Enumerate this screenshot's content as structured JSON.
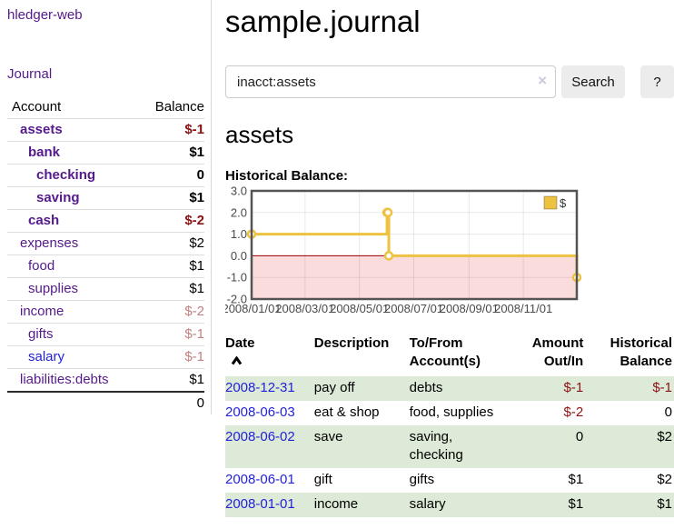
{
  "colors": {
    "link_purple": "#551A8B",
    "link_blue": "#2323D8",
    "negative_strong": "#8B1212",
    "negative_muted": "#C28181",
    "row_stripe_green": "#DCEAD7",
    "chart_series_yellow": "#EDC240",
    "chart_negative_fill": "#FBDCDC",
    "chart_zero_line": "#990000",
    "button_bg": "#ECECEC"
  },
  "sidebar": {
    "brand": "hledger-web",
    "journal_link": "Journal",
    "accounts": {
      "col_account": "Account",
      "col_balance": "Balance",
      "rows": [
        {
          "name": "assets",
          "balance": "$-1"
        },
        {
          "name": "bank",
          "balance": "$1"
        },
        {
          "name": "checking",
          "balance": "0"
        },
        {
          "name": "saving",
          "balance": "$1"
        },
        {
          "name": "cash",
          "balance": "$-2"
        },
        {
          "name": "expenses",
          "balance": "$2"
        },
        {
          "name": "food",
          "balance": "$1"
        },
        {
          "name": "supplies",
          "balance": "$1"
        },
        {
          "name": "income",
          "balance": "$-2"
        },
        {
          "name": "gifts",
          "balance": "$-1"
        },
        {
          "name": "salary",
          "balance": "$-1"
        },
        {
          "name": "liabilities:debts",
          "balance": "$1"
        }
      ],
      "total": "0"
    }
  },
  "main": {
    "title": "sample.journal",
    "search": {
      "value": "inacct:assets",
      "clear": "×",
      "search_button": "Search",
      "help_button": "?"
    },
    "account_title": "assets",
    "chart_heading": "Historical Balance:"
  },
  "chart_data": {
    "type": "line",
    "step": true,
    "title": "Historical Balance",
    "x_range": [
      "2008-01-01",
      "2008-12-31"
    ],
    "ylim": [
      -2,
      3
    ],
    "series": [
      {
        "name": "$",
        "points": [
          [
            "2008-01-01",
            1
          ],
          [
            "2008-06-01",
            2
          ],
          [
            "2008-06-02",
            2
          ],
          [
            "2008-06-03",
            0
          ],
          [
            "2008-12-31",
            -1
          ]
        ]
      }
    ],
    "x_ticks": [
      "2008/01/01",
      "2008/03/01",
      "2008/05/01",
      "2008/07/01",
      "2008/09/01",
      "2008/11/01"
    ],
    "y_ticks": [
      "3.0",
      "2.0",
      "1.0",
      "0.0",
      "-1.0",
      "-2.0"
    ],
    "grid": true,
    "legend": "$",
    "legend_position": "top-right"
  },
  "register": {
    "headers": {
      "date": "Date",
      "description": "Description",
      "tofrom1": "To/From",
      "tofrom2": "Account(s)",
      "amount1": "Amount",
      "amount2": "Out/In",
      "hist1": "Historical",
      "hist2": "Balance"
    },
    "rows": [
      {
        "date": "2008-12-31",
        "description": "pay off",
        "accounts": "debts",
        "amount": "$-1",
        "balance": "$-1"
      },
      {
        "date": "2008-06-03",
        "description": "eat & shop",
        "accounts": "food, supplies",
        "amount": "$-2",
        "balance": "0"
      },
      {
        "date": "2008-06-02",
        "description": "save",
        "accounts": "saving, checking",
        "amount": "0",
        "balance": "$2"
      },
      {
        "date": "2008-06-01",
        "description": "gift",
        "accounts": "gifts",
        "amount": "$1",
        "balance": "$2"
      },
      {
        "date": "2008-01-01",
        "description": "income",
        "accounts": "salary",
        "amount": "$1",
        "balance": "$1"
      }
    ]
  }
}
